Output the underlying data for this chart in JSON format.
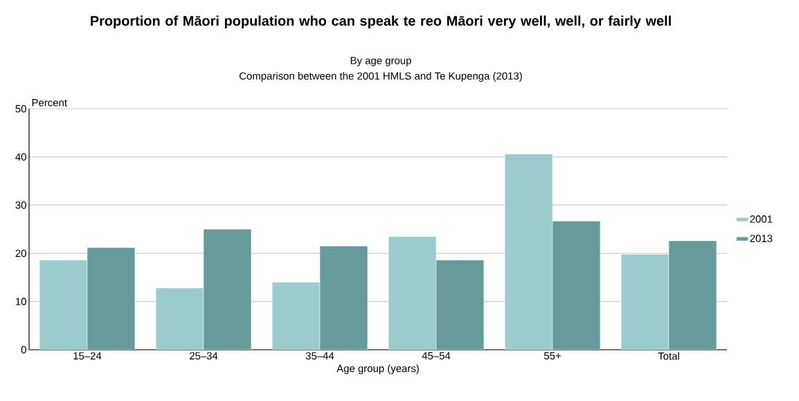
{
  "chart_data": {
    "type": "bar",
    "title": "Proportion of Māori population who can speak te reo Māori very well, well, or fairly well",
    "subtitle": "By age group",
    "annotations": [
      "Comparison between the 2001 HMLS and Te Kupenga (2013)"
    ],
    "ylabel": "Percent",
    "xlabel": "Age group (years)",
    "categories": [
      "15–24",
      "25–34",
      "35–44",
      "45–54",
      "55+",
      "Total"
    ],
    "series": [
      {
        "name": "2001",
        "color": "#9bcccd",
        "values": [
          18.6,
          12.8,
          14.0,
          23.5,
          40.6,
          19.8
        ]
      },
      {
        "name": "2013",
        "color": "#679a9a",
        "values": [
          21.2,
          25.0,
          21.5,
          18.6,
          26.7,
          22.6
        ]
      }
    ],
    "ylim": [
      0,
      50
    ],
    "yticks": [
      0,
      10,
      20,
      30,
      40,
      50
    ],
    "grid": "y",
    "legend": "right"
  }
}
